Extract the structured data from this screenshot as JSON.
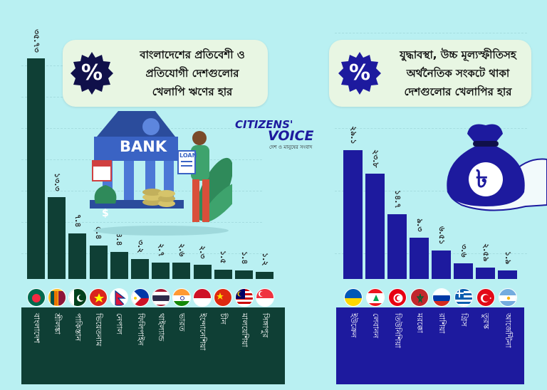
{
  "left_panel": {
    "title_line1": "বাংলাদেশের প্রতিবেশী ও",
    "title_line2": "প্রতিযোগী দেশগুলোর",
    "title_line3": "খেলাপি ঋণের হার",
    "badge_symbol": "%"
  },
  "right_panel": {
    "title_line1": "যুদ্ধাবস্থা, উচ্চ মূল্যস্ফীতিসহ",
    "title_line2": "অর্থনৈতিক সংকটে থাকা",
    "title_line3": "দেশগুলোর খেলাপির হার",
    "badge_symbol": "%"
  },
  "illustration": {
    "bank_sign": "BANK",
    "loan_sign": "LOAN",
    "money_bag_symbol": "$",
    "taka_symbol": "৳"
  },
  "logo": {
    "line1": "CITIZENS'",
    "line2": "VOICE",
    "tagline": "দেশ ও মানুষের সংবাদ"
  },
  "colors": {
    "background": "#b9f0f2",
    "left_bars": "#0f3f35",
    "right_bars": "#1d1a9e"
  },
  "chart_data": [
    {
      "type": "bar",
      "title": "বাংলাদেশের প্রতিবেশী ও প্রতিযোগী দেশগুলোর খেলাপি ঋণের হার",
      "categories": [
        "বাংলাদেশ",
        "শ্রীলঙ্কা",
        "পাকিস্তান",
        "ভিয়েতনাম",
        "নেপাল",
        "ফিলিপাইন",
        "থাইল্যান্ড",
        "ভারত",
        "ইন্দোনেশিয়া",
        "চীন",
        "মালয়েশিয়া",
        "সিঙ্গাপুর"
      ],
      "values": [
        35.73,
        13.3,
        7.4,
        5.4,
        4.4,
        3.2,
        2.7,
        2.6,
        2.3,
        1.5,
        1.4,
        1.2
      ],
      "value_labels": [
        "৩৫.৭৩",
        "১৩.৩",
        "৭.৪",
        "৫.৪",
        "৪.৪",
        "৩.২",
        "২.৭",
        "২.৬",
        "২.৩",
        "১.৫",
        "১.৪",
        "১.২"
      ],
      "flags": [
        "bangladesh-flag",
        "sri-lanka-flag",
        "pakistan-flag",
        "vietnam-flag",
        "nepal-flag",
        "philippines-flag",
        "thailand-flag",
        "india-flag",
        "indonesia-flag",
        "china-flag",
        "malaysia-flag",
        "singapore-flag"
      ],
      "ylim": [
        0,
        38
      ],
      "grid": true,
      "legend": "none"
    },
    {
      "type": "bar",
      "title": "যুদ্ধাবস্থা, উচ্চ মূল্যস্ফীতিসহ অর্থনৈতিক সংকটে থাকা দেশগুলোর খেলাপির হার",
      "categories": [
        "ইউক্রেন",
        "লেবানন",
        "তিউনিশিয়া",
        "মরক্কো",
        "রাশিয়া",
        "গ্রিস",
        "তুরস্ক",
        "আর্জেন্টিনা"
      ],
      "values": [
        29.1,
        23.8,
        14.7,
        9.3,
        6.51,
        3.6,
        2.59,
        1.9
      ],
      "value_labels": [
        "২৯.১",
        "২৩.৮",
        "১৪.৭",
        "৯.৩",
        "৬.৫১",
        "৩.৬",
        "২.৫৯",
        "১.৯"
      ],
      "flags": [
        "ukraine-flag",
        "lebanon-flag",
        "tunisia-flag",
        "morocco-flag",
        "russia-flag",
        "greece-flag",
        "turkey-flag",
        "argentina-flag"
      ],
      "ylim": [
        0,
        38
      ],
      "grid": true,
      "legend": "none"
    }
  ]
}
